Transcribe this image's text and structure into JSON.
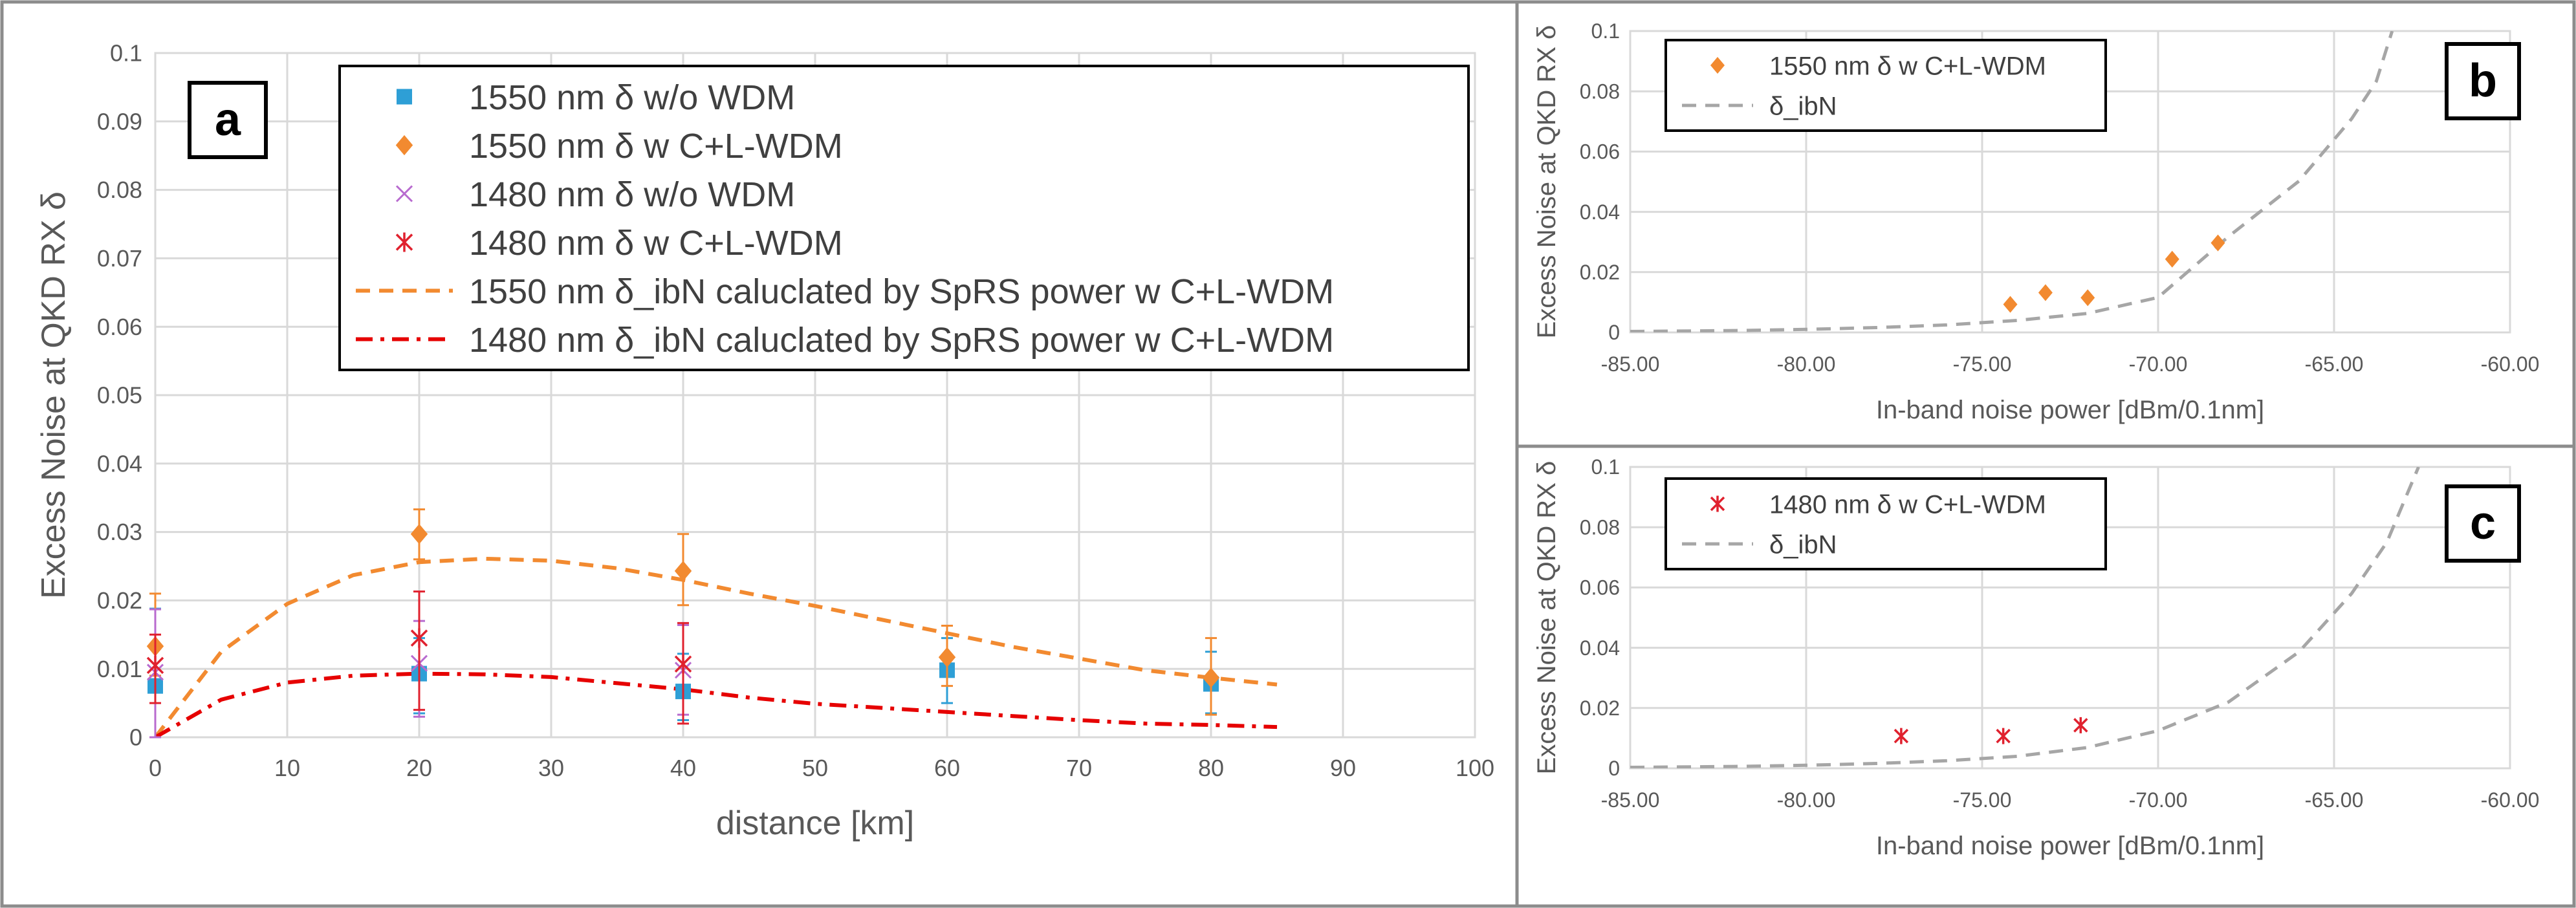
{
  "panels": {
    "a": {
      "label": "a"
    },
    "b": {
      "label": "b"
    },
    "c": {
      "label": "c"
    }
  },
  "colors": {
    "c1550_nowdm": "#2E9FD6",
    "c1550_wdm": "#F28A30",
    "c1480_nowdm": "#B86BCF",
    "c1480_wdm": "#E0212E",
    "ibn_curve": "#A6A6A6",
    "red_curve": "#E60000",
    "grid": "#D9D9D9",
    "axis_text": "#595959"
  },
  "chart_data": [
    {
      "id": "a",
      "type": "scatter",
      "title": "",
      "xlabel": "distance [km]",
      "ylabel": "Excess Noise at QKD RX δ",
      "xlim": [
        0,
        100
      ],
      "ylim": [
        0,
        0.1
      ],
      "xticks": [
        "0",
        "10",
        "20",
        "30",
        "40",
        "50",
        "60",
        "70",
        "80",
        "90",
        "100"
      ],
      "yticks": [
        "0",
        "0.01",
        "0.02",
        "0.03",
        "0.04",
        "0.05",
        "0.06",
        "0.07",
        "0.08",
        "0.09",
        "0.1"
      ],
      "grid": true,
      "legend_position": "top",
      "series": [
        {
          "name": "1550 nm δ w/o WDM",
          "marker": "square",
          "color_key": "c1550_nowdm",
          "x": [
            0,
            20,
            40,
            60,
            80
          ],
          "y": [
            0.0075,
            0.0093,
            0.0067,
            0.0098,
            0.0078
          ],
          "err_low": [
            0.0075,
            0.0058,
            0.0042,
            0.0048,
            0.0043
          ],
          "err_high": [
            0.0113,
            0.0052,
            0.0055,
            0.0047,
            0.0047
          ]
        },
        {
          "name": "1550 nm δ w C+L-WDM",
          "marker": "diamond",
          "color_key": "c1550_wdm",
          "x": [
            0,
            20,
            40,
            60,
            80
          ],
          "y": [
            0.0133,
            0.0297,
            0.0243,
            0.0117,
            0.0087
          ],
          "err_low": [
            0.0043,
            0.0037,
            0.005,
            0.0042,
            0.0054
          ],
          "err_high": [
            0.0077,
            0.0036,
            0.0054,
            0.0046,
            0.0058
          ]
        },
        {
          "name": "1480 nm δ w/o WDM",
          "marker": "x",
          "color_key": "c1480_nowdm",
          "x": [
            0,
            20,
            40,
            60,
            80
          ],
          "y": [
            0.0095,
            0.0108,
            0.0098,
            0.0,
            0.0
          ],
          "visible": [
            true,
            true,
            true,
            false,
            false
          ],
          "err_low": [
            0.0095,
            0.0078,
            0.0065,
            0,
            0
          ],
          "err_high": [
            0.0092,
            0.0062,
            0.0066,
            0,
            0
          ]
        },
        {
          "name": "1480 nm δ w C+L-WDM",
          "marker": "asterisk",
          "color_key": "c1480_wdm",
          "x": [
            0,
            20,
            40
          ],
          "y": [
            0.0105,
            0.0145,
            0.0107
          ],
          "err_low": [
            0.0055,
            0.0105,
            0.0087
          ],
          "err_high": [
            0.0045,
            0.0068,
            0.006
          ]
        },
        {
          "name": "1550 nm δ_ibN caluclated by SpRS power w C+L-WDM",
          "line": "dash",
          "color_key": "c1550_wdm",
          "x": [
            0,
            5,
            10,
            15,
            20,
            25,
            30,
            35,
            40,
            45,
            50,
            55,
            60,
            65,
            70,
            75,
            80,
            85
          ],
          "y": [
            0.0,
            0.0125,
            0.0195,
            0.0237,
            0.0256,
            0.0261,
            0.0258,
            0.0247,
            0.023,
            0.021,
            0.0192,
            0.0172,
            0.0152,
            0.0132,
            0.0115,
            0.0098,
            0.0087,
            0.0077
          ]
        },
        {
          "name": "1480 nm δ_ibN caluclated by SpRS power w C+L-WDM",
          "line": "dashdot",
          "color_key": "red_curve",
          "x": [
            0,
            5,
            10,
            15,
            20,
            25,
            30,
            35,
            40,
            45,
            50,
            55,
            60,
            65,
            70,
            75,
            80,
            85
          ],
          "y": [
            0.0,
            0.0055,
            0.008,
            0.009,
            0.0093,
            0.0092,
            0.0088,
            0.0079,
            0.007,
            0.0058,
            0.0049,
            0.0043,
            0.0037,
            0.0031,
            0.0025,
            0.002,
            0.0018,
            0.0015
          ]
        }
      ]
    },
    {
      "id": "b",
      "type": "scatter",
      "title": "",
      "xlabel": "In-band noise power [dBm/0.1nm]",
      "ylabel": "Excess Noise at QKD RX δ",
      "xlim": [
        -85,
        -60
      ],
      "ylim": [
        0,
        0.1
      ],
      "xticks": [
        "-85.00",
        "-80.00",
        "-75.00",
        "-70.00",
        "-65.00",
        "-60.00"
      ],
      "yticks": [
        "0",
        "0.02",
        "0.04",
        "0.06",
        "0.08",
        "0.1"
      ],
      "grid": true,
      "legend_position": "top-left",
      "series": [
        {
          "name": "1550 nm δ w C+L-WDM",
          "marker": "diamond",
          "color_key": "c1550_wdm",
          "x": [
            -74.2,
            -73.2,
            -72.0,
            -69.6,
            -68.3
          ],
          "y": [
            0.0093,
            0.0132,
            0.0115,
            0.0243,
            0.0297
          ]
        },
        {
          "name": "δ_ibN",
          "line": "dash",
          "color_key": "ibn_curve",
          "x": [
            -85,
            -82,
            -80,
            -78,
            -76,
            -74,
            -72,
            -70,
            -68,
            -66,
            -64.5,
            -63.8,
            -63.35
          ],
          "y": [
            0.00032,
            0.00063,
            0.001,
            0.0016,
            0.0025,
            0.004,
            0.0063,
            0.0116,
            0.0318,
            0.0502,
            0.0709,
            0.0833,
            0.1
          ]
        }
      ]
    },
    {
      "id": "c",
      "type": "scatter",
      "title": "",
      "xlabel": "In-band noise power [dBm/0.1nm]",
      "ylabel": "Excess Noise at QKD RX δ",
      "xlim": [
        -85,
        -60
      ],
      "ylim": [
        0,
        0.1
      ],
      "xticks": [
        "-85.00",
        "-80.00",
        "-75.00",
        "-70.00",
        "-65.00",
        "-60.00"
      ],
      "yticks": [
        "0",
        "0.02",
        "0.04",
        "0.06",
        "0.08",
        "0.1"
      ],
      "grid": true,
      "legend_position": "top-left",
      "series": [
        {
          "name": "1480 nm δ w C+L-WDM",
          "marker": "asterisk",
          "color_key": "c1480_wdm",
          "x": [
            -77.3,
            -74.4,
            -72.2
          ],
          "y": [
            0.0107,
            0.0107,
            0.0143
          ]
        },
        {
          "name": "δ_ibN",
          "line": "dash",
          "color_key": "ibn_curve",
          "x": [
            -85,
            -82,
            -80,
            -78,
            -76,
            -74,
            -72,
            -70,
            -68,
            -66,
            -64.5,
            -63.5,
            -62.6
          ],
          "y": [
            0.00032,
            0.00063,
            0.001,
            0.0016,
            0.0025,
            0.004,
            0.0069,
            0.0125,
            0.022,
            0.0386,
            0.058,
            0.075,
            0.1
          ]
        }
      ]
    }
  ]
}
